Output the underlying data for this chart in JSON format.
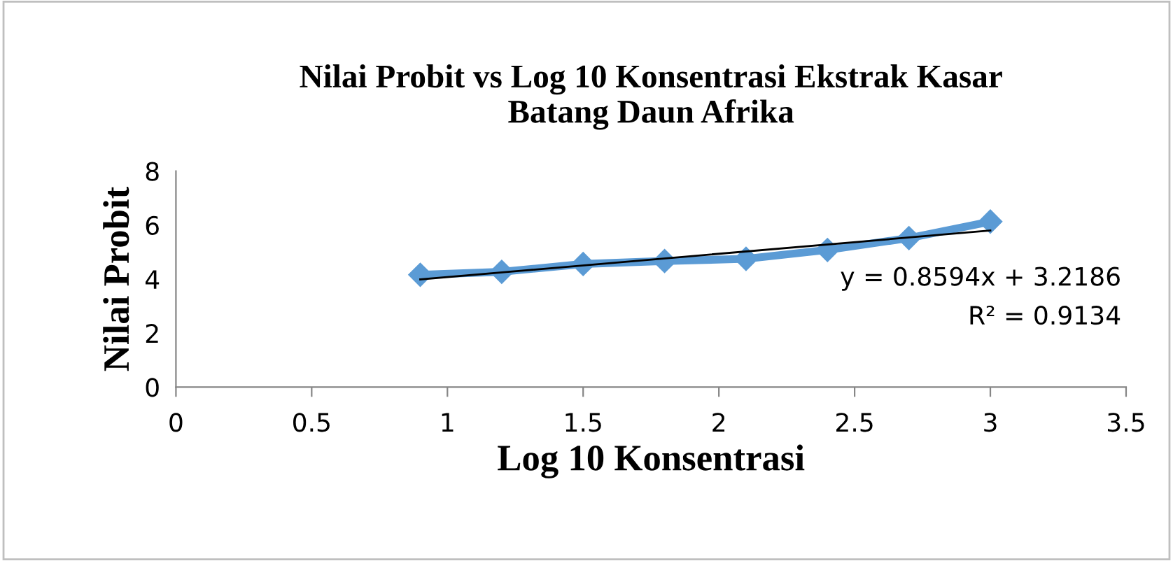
{
  "chart_data": {
    "type": "line",
    "title": "Nilai Probit vs Log 10 Konsentrasi Ekstrak Kasar\nBatang Daun Afrika",
    "xlabel": "Log 10 Konsentrasi",
    "ylabel": "Nilai Probit",
    "x": [
      0.9,
      1.2,
      1.5,
      1.8,
      2.1,
      2.4,
      2.7,
      3.0
    ],
    "series": [
      {
        "color": "#5b9bd5",
        "values": [
          4.16,
          4.27,
          4.56,
          4.67,
          4.75,
          5.08,
          5.52,
          6.13
        ],
        "marker": "diamond"
      },
      {
        "type": "line",
        "color": "#000000",
        "x": [
          0.9,
          3.0
        ],
        "values": [
          3.99,
          5.8
        ],
        "marker": "none"
      }
    ],
    "annotations": [
      "y = 0.8594x + 3.2186",
      "R² = 0.9134"
    ],
    "xlim": [
      0,
      3.5
    ],
    "xticks": [
      0,
      0.5,
      1,
      1.5,
      2,
      2.5,
      3,
      3.5
    ],
    "ylim": [
      0,
      8
    ],
    "yticks": [
      0,
      2,
      4,
      6,
      8
    ],
    "grid": false,
    "legend": false
  }
}
